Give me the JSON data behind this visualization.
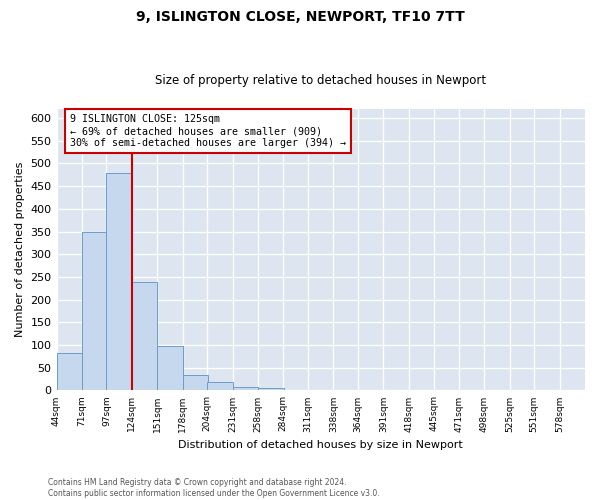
{
  "title": "9, ISLINGTON CLOSE, NEWPORT, TF10 7TT",
  "subtitle": "Size of property relative to detached houses in Newport",
  "xlabel": "Distribution of detached houses by size in Newport",
  "ylabel": "Number of detached properties",
  "bar_edges": [
    44,
    71,
    97,
    124,
    151,
    178,
    204,
    231,
    258,
    284,
    311,
    338,
    364,
    391,
    418,
    445,
    471,
    498,
    525,
    551,
    578
  ],
  "bar_heights": [
    83,
    350,
    480,
    238,
    97,
    35,
    19,
    7,
    5,
    0,
    0,
    0,
    2,
    0,
    0,
    0,
    0,
    2,
    0,
    0,
    2
  ],
  "bar_color": "#c5d8ed",
  "bar_edge_color": "#6b9ec8",
  "property_line_x": 124,
  "property_line_color": "#cc0000",
  "annotation_text": "9 ISLINGTON CLOSE: 125sqm\n← 69% of detached houses are smaller (909)\n30% of semi-detached houses are larger (394) →",
  "annotation_box_color": "white",
  "annotation_box_edge": "#cc0000",
  "ylim": [
    0,
    620
  ],
  "yticks": [
    0,
    50,
    100,
    150,
    200,
    250,
    300,
    350,
    400,
    450,
    500,
    550,
    600
  ],
  "tick_labels": [
    "44sqm",
    "71sqm",
    "97sqm",
    "124sqm",
    "151sqm",
    "178sqm",
    "204sqm",
    "231sqm",
    "258sqm",
    "284sqm",
    "311sqm",
    "338sqm",
    "364sqm",
    "391sqm",
    "418sqm",
    "445sqm",
    "471sqm",
    "498sqm",
    "525sqm",
    "551sqm",
    "578sqm"
  ],
  "footer_line1": "Contains HM Land Registry data © Crown copyright and database right 2024.",
  "footer_line2": "Contains public sector information licensed under the Open Government Licence v3.0.",
  "plot_bg_color": "#dde6f0",
  "grid_color": "#ffffff",
  "title_fontsize": 10,
  "subtitle_fontsize": 8.5
}
